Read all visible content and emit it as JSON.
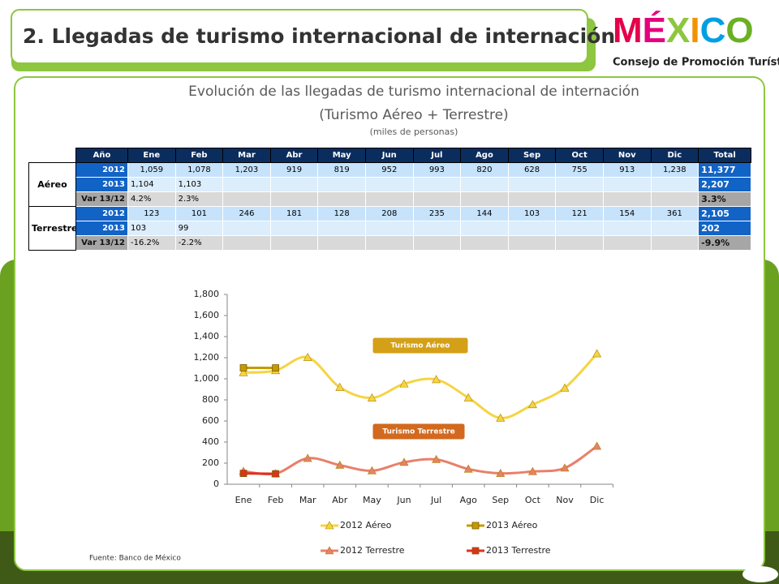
{
  "header": {
    "title": "2. Llegadas de turismo internacional de internación"
  },
  "logo": {
    "text": "MÉXICO",
    "tagline": "Consejo de Promoción Turística"
  },
  "subtitle": [
    "Evolución de las llegadas de turismo internacional de internación",
    "(Turismo Aéreo + Terrestre)",
    "(miles de personas)"
  ],
  "table": {
    "columns": [
      "Año",
      "Ene",
      "Feb",
      "Mar",
      "Abr",
      "May",
      "Jun",
      "Jul",
      "Ago",
      "Sep",
      "Oct",
      "Nov",
      "Dic",
      "Total"
    ],
    "groups": [
      {
        "label": "Aéreo",
        "rows": [
          {
            "year": "2012",
            "months": [
              "1,059",
              "1,078",
              "1,203",
              "919",
              "819",
              "952",
              "993",
              "820",
              "628",
              "755",
              "913",
              "1,238"
            ],
            "total": "11,377"
          },
          {
            "year": "2013",
            "months": [
              "1,104",
              "1,103"
            ],
            "total": "2,207"
          },
          {
            "year": "Var 13/12",
            "months": [
              "4.2%",
              "2.3%"
            ],
            "total": "3.3%"
          }
        ]
      },
      {
        "label": "Terrestre",
        "rows": [
          {
            "year": "2012",
            "months": [
              "123",
              "101",
              "246",
              "181",
              "128",
              "208",
              "235",
              "144",
              "103",
              "121",
              "154",
              "361"
            ],
            "total": "2,105"
          },
          {
            "year": "2013",
            "months": [
              "103",
              "99"
            ],
            "total": "202"
          },
          {
            "year": "Var 13/12",
            "months": [
              "-16.2%",
              "-2.2%"
            ],
            "total": "-9.9%"
          }
        ]
      }
    ]
  },
  "chart_data": {
    "type": "line",
    "categories": [
      "Ene",
      "Feb",
      "Mar",
      "Abr",
      "May",
      "Jun",
      "Jul",
      "Ago",
      "Sep",
      "Oct",
      "Nov",
      "Dic"
    ],
    "series": [
      {
        "name": "2012 Aéreo",
        "color": "#f5d443",
        "marker": "triangle",
        "values": [
          1059,
          1078,
          1203,
          919,
          819,
          952,
          993,
          820,
          628,
          755,
          913,
          1238
        ]
      },
      {
        "name": "2013 Aéreo",
        "color": "#c49a00",
        "marker": "square",
        "values": [
          1104,
          1103,
          null,
          null,
          null,
          null,
          null,
          null,
          null,
          null,
          null,
          null
        ]
      },
      {
        "name": "2012 Terrestre",
        "color": "#e8806a",
        "marker": "triangle",
        "values": [
          123,
          101,
          246,
          181,
          128,
          208,
          235,
          144,
          103,
          121,
          154,
          361
        ]
      },
      {
        "name": "2013 Terrestre",
        "color": "#e0301e",
        "marker": "square",
        "values": [
          103,
          99,
          null,
          null,
          null,
          null,
          null,
          null,
          null,
          null,
          null,
          null
        ]
      }
    ],
    "ylim": [
      0,
      1800
    ],
    "yticks": [
      0,
      200,
      400,
      600,
      800,
      {
        "value": 1000,
        "label": "1,000"
      },
      {
        "value": 1200,
        "label": "1,200"
      },
      {
        "value": 1400,
        "label": "1,400"
      },
      {
        "value": 1600,
        "label": "1,600"
      },
      {
        "value": 1800,
        "label": "1,800"
      }
    ],
    "annotations": [
      {
        "text": "Turismo Aéreo",
        "color": "#d4a017"
      },
      {
        "text": "Turismo Terrestre",
        "color": "#d2691e"
      }
    ]
  },
  "source": "Fuente: Banco de México"
}
